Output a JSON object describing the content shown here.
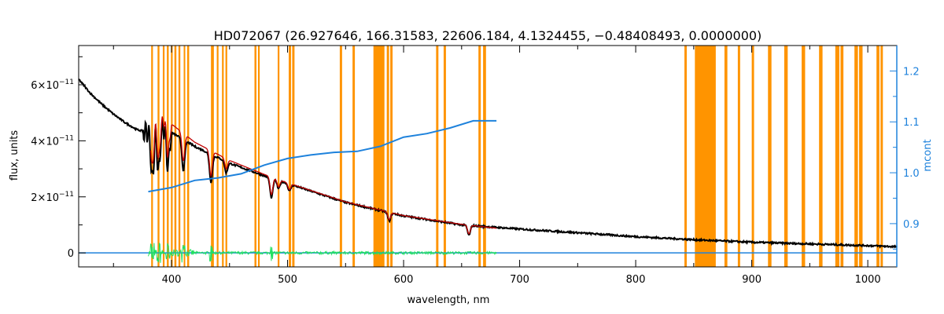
{
  "chart_data": {
    "type": "line",
    "title": "HD072067    (26.927646, 166.31583, 22606.184, 4.1324455, −0.48408493, 0.0000000)",
    "xlabel": "wavelength, nm",
    "ylabel": "flux, units",
    "y2label": "mcont",
    "xlim": [
      320,
      1025
    ],
    "ylim": [
      -5e-12,
      7.4e-11
    ],
    "y2lim": [
      0.815,
      1.25
    ],
    "xticks": [
      400,
      500,
      600,
      700,
      800,
      900,
      1000
    ],
    "yticks": [
      {
        "value": 0,
        "label": "0",
        "exp": ""
      },
      {
        "value": 2e-11,
        "label": "2×10",
        "exp": "−11"
      },
      {
        "value": 4e-11,
        "label": "4×10",
        "exp": "−11"
      },
      {
        "value": 6e-11,
        "label": "6×10",
        "exp": "−11"
      }
    ],
    "y2ticks": [
      0.9,
      1.0,
      1.1,
      1.2
    ],
    "colors": {
      "observed": "#000000",
      "model": "#c00000",
      "continuum": "#1e82dc",
      "residual": "#20e060",
      "mask": "#ff9400",
      "right_axis": "#1e82dc"
    },
    "mask_bands": [
      [
        382.5,
        384.0
      ],
      [
        388.0,
        389.6
      ],
      [
        392.5,
        394.0
      ],
      [
        396.0,
        397.6
      ],
      [
        399.5,
        401.0
      ],
      [
        402.5,
        404.2
      ],
      [
        406.0,
        407.6
      ],
      [
        410.5,
        411.5
      ],
      [
        413.5,
        415.2
      ],
      [
        434.0,
        436.5
      ],
      [
        439.0,
        440.5
      ],
      [
        443.5,
        445.0
      ],
      [
        446.5,
        448.0
      ],
      [
        471.5,
        473.2
      ],
      [
        474.5,
        476.0
      ],
      [
        491.5,
        493.0
      ],
      [
        501.0,
        503.0
      ],
      [
        504.0,
        506.0
      ],
      [
        545.0,
        547.0
      ],
      [
        556.0,
        558.0
      ],
      [
        574.0,
        583.5
      ],
      [
        585.5,
        587.5
      ],
      [
        588.5,
        590.5
      ],
      [
        628.0,
        630.0
      ],
      [
        634.5,
        636.5
      ],
      [
        664.5,
        666.5
      ],
      [
        668.5,
        671.0
      ],
      [
        842.0,
        844.0
      ],
      [
        851.0,
        869.0
      ],
      [
        876.5,
        879.0
      ],
      [
        888.0,
        890.0
      ],
      [
        900.0,
        902.0
      ],
      [
        914.0,
        917.0
      ],
      [
        928.0,
        931.0
      ],
      [
        943.0,
        946.0
      ],
      [
        958.0,
        961.0
      ],
      [
        972.0,
        975.5
      ],
      [
        976.5,
        979.0
      ],
      [
        988.5,
        991.5
      ],
      [
        992.5,
        995.5
      ],
      [
        1007.5,
        1010.0
      ],
      [
        1011.0,
        1013.0
      ]
    ],
    "observed": {
      "x": [
        320,
        330,
        340,
        350,
        360,
        370,
        380,
        390,
        400,
        420,
        450,
        480,
        500,
        550,
        600,
        650,
        700,
        750,
        800,
        850,
        900,
        950,
        1000,
        1025
      ],
      "y": [
        6.2e-11,
        5.7e-11,
        5.3e-11,
        4.95e-11,
        4.65e-11,
        4.4e-11,
        4.3e-11,
        4.5e-11,
        4.3e-11,
        3.8e-11,
        3.2e-11,
        2.75e-11,
        2.48e-11,
        1.8e-11,
        1.32e-11,
        1e-11,
        8.5e-12,
        7.2e-12,
        5.8e-12,
        4.7e-12,
        3.8e-12,
        3.2e-12,
        2.6e-12,
        2.2e-12
      ]
    },
    "model": {
      "x": [
        382,
        390,
        400,
        420,
        450,
        480,
        500,
        550,
        600,
        650,
        680
      ],
      "y": [
        4.6e-11,
        4.75e-11,
        4.6e-11,
        3.95e-11,
        3.3e-11,
        2.8e-11,
        2.5e-11,
        1.82e-11,
        1.33e-11,
        1.02e-11,
        8.8e-12
      ]
    },
    "absorption_lines": [
      {
        "x": 383.5,
        "depth": 1.8e-11
      },
      {
        "x": 388.9,
        "depth": 1.6e-11
      },
      {
        "x": 397.0,
        "depth": 1.3e-11
      },
      {
        "x": 410.2,
        "depth": 1.1e-11
      },
      {
        "x": 434.0,
        "depth": 1e-11
      },
      {
        "x": 447.1,
        "depth": 4e-12
      },
      {
        "x": 486.1,
        "depth": 7e-12
      },
      {
        "x": 492.2,
        "depth": 3e-12
      },
      {
        "x": 501.6,
        "depth": 2.5e-12
      },
      {
        "x": 587.6,
        "depth": 3e-12
      },
      {
        "x": 656.3,
        "depth": 3.5e-12
      }
    ],
    "continuum": {
      "x": [
        380,
        400,
        420,
        440,
        460,
        480,
        500,
        520,
        540,
        560,
        580,
        600,
        620,
        640,
        660,
        680
      ],
      "y2": [
        0.963,
        0.971,
        0.985,
        0.99,
        0.998,
        1.015,
        1.028,
        1.035,
        1.04,
        1.042,
        1.052,
        1.07,
        1.077,
        1.088,
        1.102,
        1.102
      ]
    },
    "baseline": {
      "x": [
        320,
        1025
      ],
      "y": [
        0,
        0
      ]
    },
    "residual_range": [
      380,
      680
    ]
  }
}
